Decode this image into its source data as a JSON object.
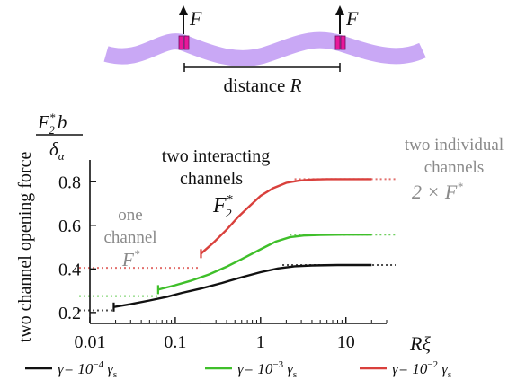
{
  "schematic": {
    "force_label": "F",
    "distance_label": "distance",
    "distance_symbol": "R",
    "membrane_color": "#c9a8f5",
    "channel_color": "#e8189a"
  },
  "chart_data": {
    "type": "line",
    "x_scale": "log",
    "xlim": [
      0.01,
      30
    ],
    "ylim": [
      0.15,
      0.9
    ],
    "xticks": [
      {
        "value": 0.01,
        "label": "0.01"
      },
      {
        "value": 0.1,
        "label": "0.1"
      },
      {
        "value": 1,
        "label": "1"
      },
      {
        "value": 10,
        "label": "10"
      }
    ],
    "yticks": [
      {
        "value": 0.2,
        "label": "0.2"
      },
      {
        "value": 0.4,
        "label": "0.4"
      },
      {
        "value": 0.6,
        "label": "0.6"
      },
      {
        "value": 0.8,
        "label": "0.8"
      }
    ],
    "xlabel": {
      "main": "R",
      "sub": "ξ"
    },
    "ylabel": "two channel opening force",
    "ylabel_fraction": {
      "num_main": "F",
      "num_sup": "*",
      "num_sub": "2",
      "num_tail": "b",
      "den_main": "δ",
      "den_sub": "α"
    },
    "grid": false,
    "legend_position": "bottom",
    "series": [
      {
        "name": "γ= 10⁻⁴ γs",
        "legend_pre": "γ= 10",
        "legend_exp": "−4",
        "legend_post": "γ",
        "legend_post_sub": "s",
        "color": "#111111",
        "x": [
          0.019,
          0.03,
          0.05,
          0.08,
          0.12,
          0.2,
          0.35,
          0.6,
          1.0,
          1.6,
          2.5,
          4,
          8,
          20
        ],
        "y": [
          0.225,
          0.238,
          0.255,
          0.272,
          0.29,
          0.31,
          0.335,
          0.362,
          0.385,
          0.402,
          0.412,
          0.416,
          0.418,
          0.418
        ],
        "low_asymptote": {
          "y": 0.21,
          "x": [
            0.01,
            0.019
          ]
        },
        "high_asymptote": {
          "y": 0.418,
          "x": [
            1.8,
            30
          ]
        }
      },
      {
        "name": "γ= 10⁻³ γs",
        "legend_pre": "γ= 10",
        "legend_exp": "−3",
        "legend_post": "γ",
        "legend_post_sub": "s",
        "color": "#3fbf2a",
        "x": [
          0.063,
          0.1,
          0.15,
          0.25,
          0.4,
          0.6,
          1.0,
          1.5,
          2.2,
          3.2,
          5,
          10,
          20
        ],
        "y": [
          0.305,
          0.325,
          0.345,
          0.375,
          0.41,
          0.445,
          0.49,
          0.525,
          0.545,
          0.553,
          0.556,
          0.557,
          0.557
        ],
        "low_asymptote": {
          "y": 0.275,
          "x": [
            0.01,
            0.063
          ]
        },
        "high_asymptote": {
          "y": 0.557,
          "x": [
            2.2,
            30
          ]
        }
      },
      {
        "name": "γ= 10⁻² γs",
        "legend_pre": "γ= 10",
        "legend_exp": "−2",
        "legend_post": "γ",
        "legend_post_sub": "s",
        "color": "#d9403c",
        "x": [
          0.2,
          0.28,
          0.4,
          0.55,
          0.75,
          1.0,
          1.4,
          2.0,
          2.8,
          4.0,
          6,
          10,
          20
        ],
        "y": [
          0.47,
          0.52,
          0.58,
          0.64,
          0.69,
          0.735,
          0.77,
          0.795,
          0.805,
          0.81,
          0.812,
          0.812,
          0.812
        ],
        "low_asymptote": {
          "y": 0.405,
          "x": [
            0.01,
            0.2
          ]
        },
        "high_asymptote": {
          "y": 0.812,
          "x": [
            2.5,
            30
          ]
        }
      }
    ],
    "annotations": {
      "one_channel": {
        "line1": "one",
        "line2": "channel",
        "symbol": "F",
        "sup": "*"
      },
      "interacting": {
        "line1": "two interacting",
        "line2": "channels",
        "symbol": "F",
        "sup": "*",
        "sub": "2"
      },
      "individual": {
        "line1": "two individual",
        "line2": "channels",
        "symbol": "2 × F",
        "sup": "*"
      }
    }
  }
}
